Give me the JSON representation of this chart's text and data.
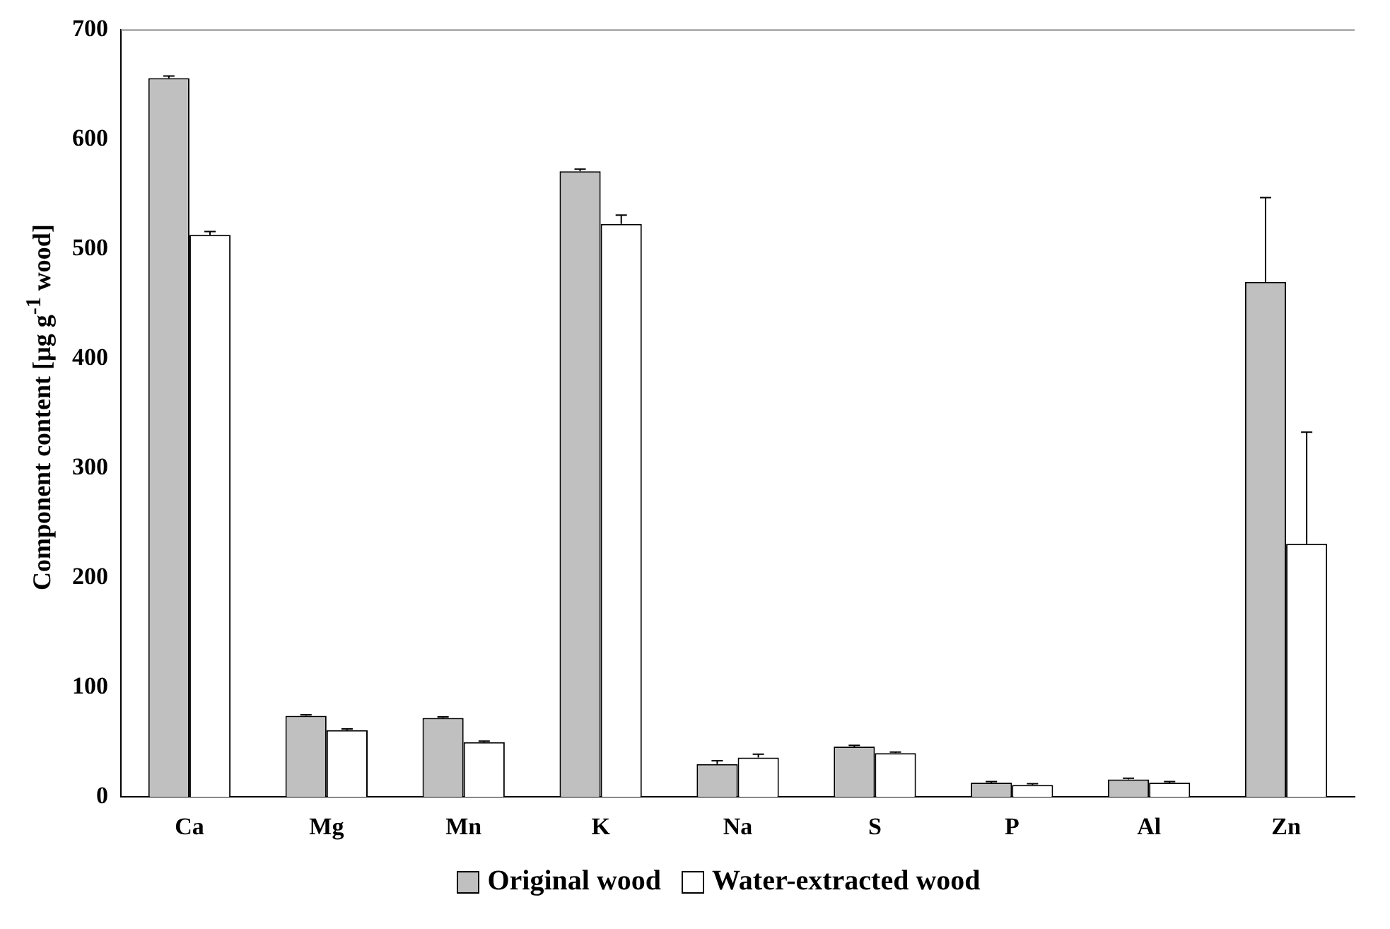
{
  "chart_data": {
    "type": "bar",
    "ylabel": "Component content [µg g$^{-1}$ wood]",
    "categories": [
      "Ca",
      "Mg",
      "Mn",
      "K",
      "Na",
      "S",
      "P",
      "Al",
      "Zn"
    ],
    "series": [
      {
        "name": "Original wood",
        "color": "#c0c0c0",
        "values": [
          656,
          74,
          72,
          571,
          30,
          46,
          13,
          16,
          470
        ],
        "errors": [
          2,
          1,
          1,
          2,
          3,
          1,
          1,
          1,
          77
        ]
      },
      {
        "name": "Water-extracted wood",
        "color": "#ffffff",
        "values": [
          513,
          61,
          50,
          523,
          36,
          40,
          11,
          13,
          231
        ],
        "errors": [
          3,
          1,
          1,
          8,
          3,
          1,
          1,
          1,
          102
        ]
      }
    ],
    "ylim": [
      0,
      700
    ],
    "yticks": [
      0,
      100,
      200,
      300,
      400,
      500,
      600,
      700
    ],
    "grid": false,
    "legend": "bottom"
  }
}
